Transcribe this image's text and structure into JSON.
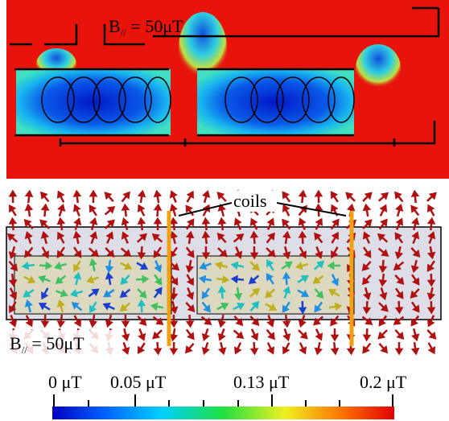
{
  "top_panel": {
    "label": {
      "symbol": "B",
      "subscript": "//",
      "rest": " = 50μT"
    }
  },
  "bottom_panel": {
    "label": {
      "symbol": "B",
      "subscript": "//",
      "rest": " = 50μT"
    },
    "annotation": "coils"
  },
  "colorbar": {
    "labels": [
      "0 μT",
      "0.05 μT",
      "0.13 μT",
      "0.2 μT"
    ]
  }
}
